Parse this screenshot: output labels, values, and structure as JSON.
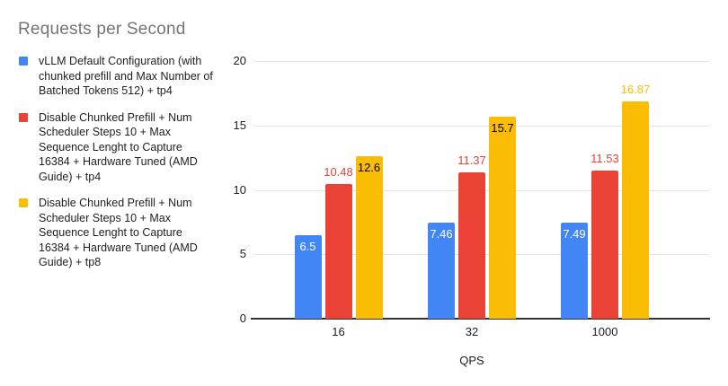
{
  "title": "Requests per Second",
  "colors": {
    "background": "#ffffff",
    "title_text": "#757575",
    "legend_text": "#202124",
    "axis_text": "#202124",
    "gridline": "#e2e2e2",
    "axis_line": "#333333",
    "series_blue": "#4285F4",
    "series_red": "#EA4335",
    "series_yellow": "#FBBC04"
  },
  "chart_data": {
    "type": "bar",
    "title": "Requests per Second",
    "xlabel": "QPS",
    "ylabel": "",
    "categories": [
      "16",
      "32",
      "1000"
    ],
    "ylim": [
      0,
      20
    ],
    "yticks": [
      0,
      5,
      10,
      15,
      20
    ],
    "grid": true,
    "legend_position": "left",
    "series": [
      {
        "name": "vLLM Default Configuration (with chunked prefill and Max Number of Batched Tokens 512) + tp4",
        "color": "#4285F4",
        "values": [
          6.5,
          7.46,
          7.49
        ],
        "value_labels": [
          "6.5",
          "7.46",
          "7.49"
        ],
        "label_positions": [
          "inside",
          "inside",
          "inside"
        ],
        "inside_label_color": "#ffffff"
      },
      {
        "name": "Disable Chunked Prefill + Num Scheduler Steps 10 + Max Sequence Lenght to Capture 16384 + Hardware Tuned (AMD Guide) + tp4",
        "color": "#EA4335",
        "values": [
          10.48,
          11.37,
          11.53
        ],
        "value_labels": [
          "10.48",
          "11.37",
          "11.53"
        ],
        "label_positions": [
          "above",
          "above",
          "above"
        ],
        "inside_label_color": "#000000"
      },
      {
        "name": "Disable Chunked Prefill + Num Scheduler Steps 10 + Max Sequence Lenght to Capture 16384 + Hardware Tuned (AMD Guide) + tp8",
        "color": "#FBBC04",
        "values": [
          12.6,
          15.7,
          16.87
        ],
        "value_labels": [
          "12.6",
          "15.7",
          "16.87"
        ],
        "label_positions": [
          "inside",
          "inside",
          "above"
        ],
        "inside_label_color": "#000000"
      }
    ]
  }
}
